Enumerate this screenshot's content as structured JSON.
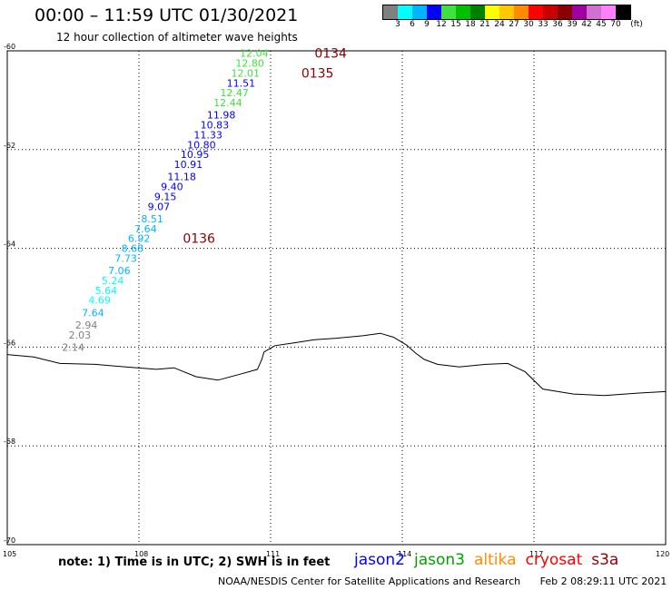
{
  "header": {
    "title": "00:00 – 11:59 UTC 01/30/2021",
    "subtitle": "12 hour collection of altimeter wave heights"
  },
  "legend": {
    "unit": "(ft)",
    "colors": [
      "#808080",
      "#00ffff",
      "#00b4ff",
      "#0000ff",
      "#40e040",
      "#00c000",
      "#008000",
      "#ffff00",
      "#ffc800",
      "#ff8c00",
      "#ff0000",
      "#c80000",
      "#8b0000",
      "#a000a0",
      "#d070d0",
      "#ff80ff",
      "#000000"
    ],
    "labels": [
      "3",
      "6",
      "9",
      "12",
      "15",
      "18",
      "21",
      "24",
      "27",
      "30",
      "33",
      "36",
      "39",
      "42",
      "45",
      "70"
    ]
  },
  "map": {
    "lon_range": [
      105,
      120
    ],
    "lat_range": [
      -70,
      -60
    ],
    "lat_ticks": [
      "-60",
      "-62",
      "-64",
      "-66",
      "-68",
      "-70"
    ],
    "lon_ticks": [
      "105",
      "108",
      "111",
      "114",
      "117",
      "120"
    ],
    "coastline": [
      [
        105,
        -66.15
      ],
      [
        105.6,
        -66.2
      ],
      [
        106.2,
        -66.33
      ],
      [
        107.0,
        -66.35
      ],
      [
        107.7,
        -66.4
      ],
      [
        108.4,
        -66.45
      ],
      [
        108.8,
        -66.42
      ],
      [
        109.3,
        -66.6
      ],
      [
        109.8,
        -66.67
      ],
      [
        110.3,
        -66.55
      ],
      [
        110.7,
        -66.45
      ],
      [
        110.8,
        -66.25
      ],
      [
        110.85,
        -66.1
      ],
      [
        111.1,
        -65.97
      ],
      [
        111.5,
        -65.92
      ],
      [
        112.0,
        -65.85
      ],
      [
        112.5,
        -65.82
      ],
      [
        113.1,
        -65.77
      ],
      [
        113.5,
        -65.72
      ],
      [
        113.8,
        -65.8
      ],
      [
        114.1,
        -65.96
      ],
      [
        114.3,
        -66.12
      ],
      [
        114.5,
        -66.25
      ],
      [
        114.8,
        -66.35
      ],
      [
        115.3,
        -66.4
      ],
      [
        115.9,
        -66.35
      ],
      [
        116.4,
        -66.33
      ],
      [
        116.8,
        -66.5
      ],
      [
        117.2,
        -66.85
      ],
      [
        117.9,
        -66.95
      ],
      [
        118.6,
        -66.98
      ],
      [
        119.4,
        -66.93
      ],
      [
        120,
        -66.9
      ]
    ],
    "orbits": [
      {
        "label": "0134",
        "lon": 112.0,
        "lat": -60.05
      },
      {
        "label": "0135",
        "lon": 111.7,
        "lat": -60.45
      },
      {
        "label": "0136",
        "lon": 109.0,
        "lat": -63.8
      }
    ],
    "points": [
      {
        "lon": 110.3,
        "lat": -60.05,
        "value": "12.04",
        "color": "#40e040"
      },
      {
        "lon": 110.2,
        "lat": -60.25,
        "value": "12.80",
        "color": "#40e040"
      },
      {
        "lon": 110.1,
        "lat": -60.45,
        "value": "12.01",
        "color": "#40e040"
      },
      {
        "lon": 110.0,
        "lat": -60.65,
        "value": "11.51",
        "color": "#0000ff"
      },
      {
        "lon": 109.85,
        "lat": -60.85,
        "value": "12.47",
        "color": "#40e040"
      },
      {
        "lon": 109.7,
        "lat": -61.05,
        "value": "12.44",
        "color": "#40e040"
      },
      {
        "lon": 109.55,
        "lat": -61.3,
        "value": "11.98",
        "color": "#0000ff"
      },
      {
        "lon": 109.4,
        "lat": -61.5,
        "value": "10.83",
        "color": "#0000ff"
      },
      {
        "lon": 109.25,
        "lat": -61.7,
        "value": "11.33",
        "color": "#0000ff"
      },
      {
        "lon": 109.1,
        "lat": -61.9,
        "value": "10.80",
        "color": "#0000ff"
      },
      {
        "lon": 108.95,
        "lat": -62.1,
        "value": "10.95",
        "color": "#0000ff"
      },
      {
        "lon": 108.8,
        "lat": -62.3,
        "value": "10.91",
        "color": "#0000ff"
      },
      {
        "lon": 108.65,
        "lat": -62.55,
        "value": "11.18",
        "color": "#0000ff"
      },
      {
        "lon": 108.5,
        "lat": -62.75,
        "value": "9.40",
        "color": "#0000ff"
      },
      {
        "lon": 108.35,
        "lat": -62.95,
        "value": "9.15",
        "color": "#0000ff"
      },
      {
        "lon": 108.2,
        "lat": -63.15,
        "value": "9.07",
        "color": "#0000ff"
      },
      {
        "lon": 108.05,
        "lat": -63.4,
        "value": "8.51",
        "color": "#00b4ff"
      },
      {
        "lon": 107.9,
        "lat": -63.6,
        "value": "7.64",
        "color": "#00b4ff"
      },
      {
        "lon": 107.75,
        "lat": -63.8,
        "value": "6.92",
        "color": "#00b4ff"
      },
      {
        "lon": 107.6,
        "lat": -64.0,
        "value": "8.68",
        "color": "#00b4ff"
      },
      {
        "lon": 107.45,
        "lat": -64.2,
        "value": "7.73",
        "color": "#00b4ff"
      },
      {
        "lon": 107.3,
        "lat": -64.45,
        "value": "7.06",
        "color": "#00b4ff"
      },
      {
        "lon": 107.15,
        "lat": -64.65,
        "value": "5.24",
        "color": "#00ffff"
      },
      {
        "lon": 107.0,
        "lat": -64.85,
        "value": "5.64",
        "color": "#00ffff"
      },
      {
        "lon": 106.85,
        "lat": -65.05,
        "value": "4.69",
        "color": "#00ffff"
      },
      {
        "lon": 106.7,
        "lat": -65.3,
        "value": "7.64",
        "color": "#00b4ff"
      },
      {
        "lon": 106.55,
        "lat": -65.55,
        "value": "2.94",
        "color": "#808080"
      },
      {
        "lon": 106.4,
        "lat": -65.75,
        "value": "2.03",
        "color": "#808080"
      },
      {
        "lon": 106.25,
        "lat": -66.0,
        "value": "2.14",
        "color": "#808080"
      }
    ]
  },
  "footer": {
    "note": "note: 1) Time is in UTC; 2) SWH is in feet",
    "satellites": [
      {
        "name": "jason2",
        "color": "#0000ff"
      },
      {
        "name": "jason3",
        "color": "#00a000"
      },
      {
        "name": "altika",
        "color": "#ff8c00"
      },
      {
        "name": "cryosat",
        "color": "#ff0000"
      },
      {
        "name": "s3a",
        "color": "#8b0000"
      }
    ],
    "credit": "NOAA/NESDIS Center for Satellite Applications and Research",
    "timestamp": "Feb  2 08:29:11 UTC 2021"
  }
}
